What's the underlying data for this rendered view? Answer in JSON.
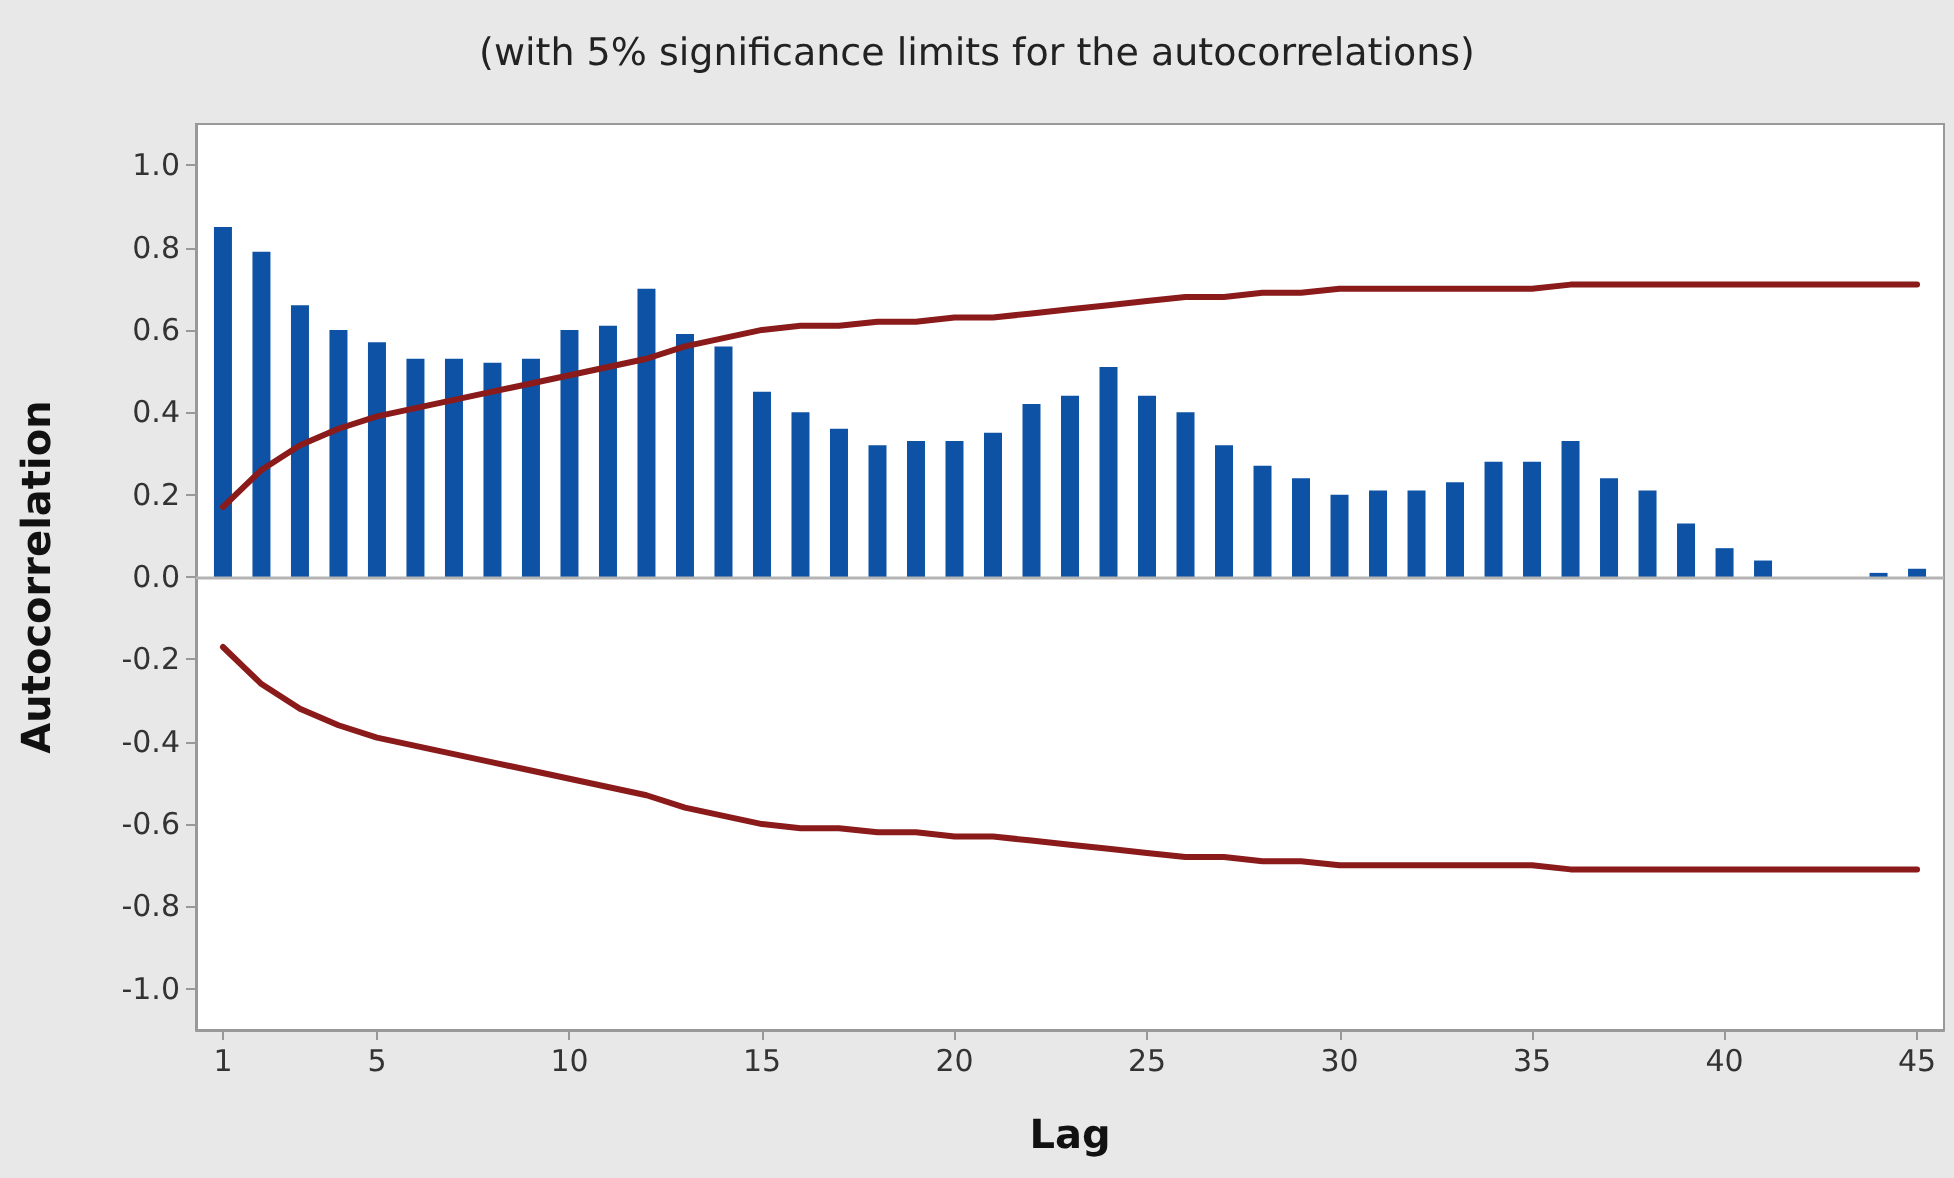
{
  "chart_data": {
    "type": "bar",
    "title": "(with 5% significance limits for the autocorrelations)",
    "xlabel": "Lag",
    "ylabel": "Autocorrelation",
    "x": [
      1,
      2,
      3,
      4,
      5,
      6,
      7,
      8,
      9,
      10,
      11,
      12,
      13,
      14,
      15,
      16,
      17,
      18,
      19,
      20,
      21,
      22,
      23,
      24,
      25,
      26,
      27,
      28,
      29,
      30,
      31,
      32,
      33,
      34,
      35,
      36,
      37,
      38,
      39,
      40,
      41,
      42,
      43,
      44,
      45
    ],
    "series": [
      {
        "color": "#0d52a5",
        "values": [
          0.85,
          0.79,
          0.66,
          0.6,
          0.57,
          0.53,
          0.53,
          0.52,
          0.53,
          0.6,
          0.61,
          0.7,
          0.59,
          0.56,
          0.45,
          0.4,
          0.36,
          0.32,
          0.33,
          0.33,
          0.35,
          0.42,
          0.44,
          0.51,
          0.44,
          0.4,
          0.32,
          0.27,
          0.24,
          0.2,
          0.21,
          0.21,
          0.23,
          0.28,
          0.28,
          0.33,
          0.24,
          0.21,
          0.13,
          0.07,
          0.04,
          0,
          0,
          0.01,
          0.02
        ]
      },
      {
        "type": "line",
        "color": "#8b1a1a",
        "values": [
          0.17,
          0.26,
          0.32,
          0.36,
          0.39,
          0.41,
          0.43,
          0.45,
          0.47,
          0.49,
          0.51,
          0.53,
          0.56,
          0.58,
          0.6,
          0.61,
          0.61,
          0.62,
          0.62,
          0.63,
          0.63,
          0.64,
          0.65,
          0.66,
          0.67,
          0.68,
          0.68,
          0.69,
          0.69,
          0.7,
          0.7,
          0.7,
          0.7,
          0.7,
          0.7,
          0.71,
          0.71,
          0.71,
          0.71,
          0.71,
          0.71,
          0.71,
          0.71,
          0.71,
          0.71
        ]
      },
      {
        "type": "line",
        "color": "#8b1a1a",
        "values": [
          -0.17,
          -0.26,
          -0.32,
          -0.36,
          -0.39,
          -0.41,
          -0.43,
          -0.45,
          -0.47,
          -0.49,
          -0.51,
          -0.53,
          -0.56,
          -0.58,
          -0.6,
          -0.61,
          -0.61,
          -0.62,
          -0.62,
          -0.63,
          -0.63,
          -0.64,
          -0.65,
          -0.66,
          -0.67,
          -0.68,
          -0.68,
          -0.69,
          -0.69,
          -0.7,
          -0.7,
          -0.7,
          -0.7,
          -0.7,
          -0.7,
          -0.71,
          -0.71,
          -0.71,
          -0.71,
          -0.71,
          -0.71,
          -0.71,
          -0.71,
          -0.71,
          -0.71
        ]
      }
    ],
    "xlim": [
      0.3,
      45.7
    ],
    "xticks": [
      1,
      5,
      10,
      15,
      20,
      25,
      30,
      35,
      40,
      45
    ],
    "ylim": [
      -1.1,
      1.1
    ],
    "yticks": [
      {
        "value": -1,
        "label": "-1.0"
      },
      {
        "value": -0.8,
        "label": "-0.8"
      },
      {
        "value": -0.6,
        "label": "-0.6"
      },
      {
        "value": -0.4,
        "label": "-0.4"
      },
      {
        "value": -0.2,
        "label": "-0.2"
      },
      {
        "value": 0,
        "label": "0.0"
      },
      {
        "value": 0.2,
        "label": "0.2"
      },
      {
        "value": 0.4,
        "label": "0.4"
      },
      {
        "value": 0.6,
        "label": "0.6"
      },
      {
        "value": 0.8,
        "label": "0.8"
      },
      {
        "value": 1,
        "label": "1.0"
      }
    ],
    "ref_lines": [
      {
        "axis": "y",
        "value": 0,
        "color": "#b4b4b4"
      }
    ],
    "grid": false,
    "marker": "none",
    "line_style": "solid"
  }
}
